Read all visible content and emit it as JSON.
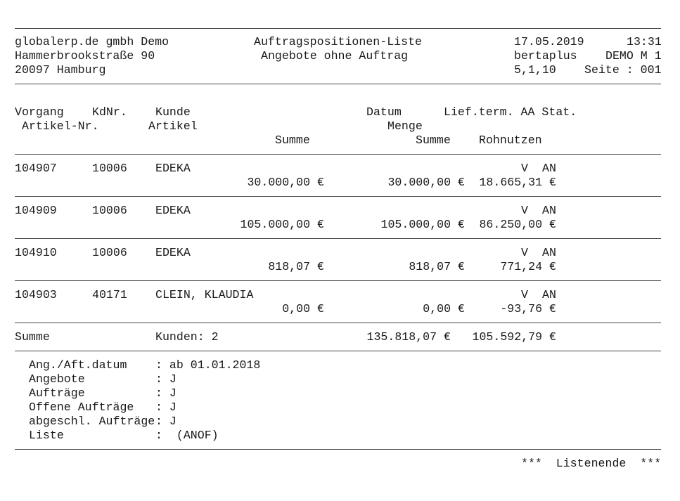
{
  "header": {
    "company": "globalerp.de gmbh Demo",
    "street": "Hammerbrookstraße 90",
    "city": "20097 Hamburg",
    "title": "Auftragspositionen-Liste",
    "subtitle": "Angebote ohne Auftrag",
    "date": "17.05.2019",
    "time": "13:31",
    "user": "bertaplus",
    "mandant": "DEMO M 1",
    "version": "5,1,10",
    "page": "Seite : 001"
  },
  "columns": {
    "vorgang": "Vorgang",
    "kdnr": "KdNr.",
    "kunde": "Kunde",
    "datum": "Datum",
    "lieftermin": "Lief.term. AA Stat.",
    "artikelnr": "Artikel-Nr.",
    "artikel": "Artikel",
    "menge": "Menge",
    "summe1": "Summe",
    "summe2": "Summe",
    "rohnutzen": "Rohnutzen"
  },
  "rows": [
    {
      "vorgang": "104907",
      "kdnr": "10006",
      "kunde": "EDEKA",
      "aa": "V",
      "stat": "AN",
      "summe1": "30.000,00 €",
      "summe2": "30.000,00 €",
      "rohnutzen": "18.665,31 €"
    },
    {
      "vorgang": "104909",
      "kdnr": "10006",
      "kunde": "EDEKA",
      "aa": "V",
      "stat": "AN",
      "summe1": "105.000,00 €",
      "summe2": "105.000,00 €",
      "rohnutzen": "86.250,00 €"
    },
    {
      "vorgang": "104910",
      "kdnr": "10006",
      "kunde": "EDEKA",
      "aa": "V",
      "stat": "AN",
      "summe1": "818,07 €",
      "summe2": "818,07 €",
      "rohnutzen": "771,24 €"
    },
    {
      "vorgang": "104903",
      "kdnr": "40171",
      "kunde": "CLEIN, KLAUDIA",
      "aa": "V",
      "stat": "AN",
      "summe1": "0,00 €",
      "summe2": "0,00 €",
      "rohnutzen": "-93,76 €"
    }
  ],
  "total": {
    "label": "Summe",
    "kunden": "Kunden: 2",
    "summe": "135.818,07 €",
    "rohnutzen": "105.592,79 €"
  },
  "criteria": [
    {
      "label": "Ang./Aft.datum",
      "value": ": ab 01.01.2018"
    },
    {
      "label": "Angebote",
      "value": ": J"
    },
    {
      "label": "Aufträge",
      "value": ": J"
    },
    {
      "label": "Offene Aufträge",
      "value": ": J"
    },
    {
      "label": "abgeschl. Aufträge",
      "value": ": J"
    },
    {
      "label": "Liste",
      "value": ":  (ANOF)"
    }
  ],
  "footer": "***  Listenende  ***"
}
